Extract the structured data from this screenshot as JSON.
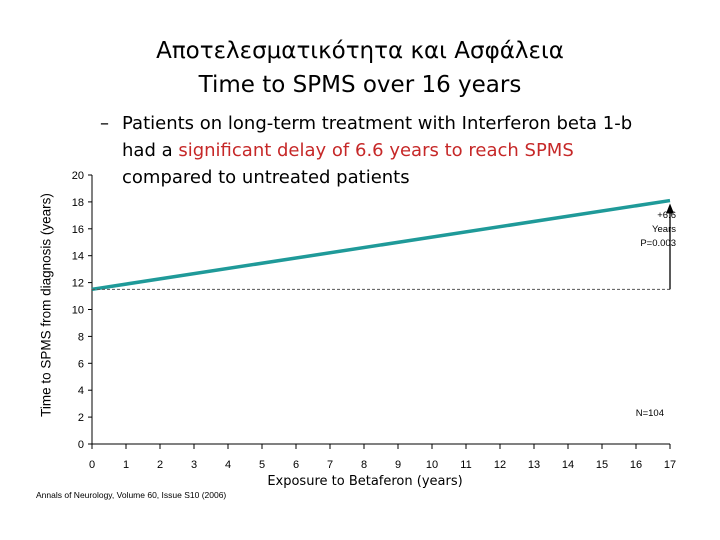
{
  "slide": {
    "title_line1": "Αποτελεσματικότητα και Ασφάλεια",
    "title_line2": "Time to SPMS over 16 years",
    "bullet": {
      "dash": "–",
      "part1": "Patients on long-term treatment with Interferon beta 1-b",
      "part2_prefix": "had a ",
      "part2_highlight": "significant delay of 6.6 years to reach SPMS",
      "part3": "compared to untreated patients"
    },
    "source": "Annals of Neurology, Volume 60, Issue S10 (2006)"
  },
  "colors": {
    "treated_line": "#1f9a99",
    "highlight_text": "#c62828",
    "axis": "#000000"
  },
  "chart_data": {
    "type": "line",
    "xlabel": "Exposure to Betaferon (years)",
    "ylabel": "Time to SPMS from diagnosis (years)",
    "xlim": [
      0,
      17
    ],
    "ylim": [
      0,
      20
    ],
    "x_ticks": [
      0,
      1,
      2,
      3,
      4,
      5,
      6,
      7,
      8,
      9,
      10,
      11,
      12,
      13,
      14,
      15,
      16,
      17
    ],
    "y_ticks": [
      0,
      2,
      4,
      6,
      8,
      10,
      12,
      14,
      16,
      18,
      20
    ],
    "series": [
      {
        "style": "solid",
        "x": [
          0,
          17
        ],
        "y": [
          11.5,
          18.1
        ]
      },
      {
        "style": "dashed",
        "x": [
          0,
          17
        ],
        "y": [
          11.5,
          11.5
        ]
      }
    ],
    "annotations": {
      "delay_lines": [
        "+6.6",
        "Years",
        "P=0.003"
      ],
      "n": "N=104"
    }
  }
}
